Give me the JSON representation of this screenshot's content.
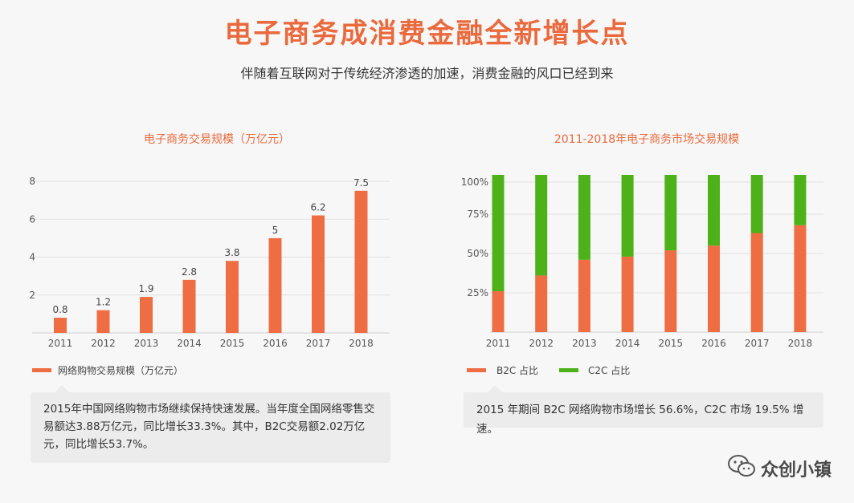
{
  "header": {
    "title": "电子商务成消费金融全新增长点",
    "subtitle": "伴随着互联网对于传统经济渗透的加速，消费金融的风口已经到来"
  },
  "colors": {
    "orange": "#ee6d42",
    "green": "#4db11a",
    "title": "#ea6a3d",
    "grid": "#e2e2e2"
  },
  "chart_data": [
    {
      "type": "bar",
      "title": "电子商务交易规模（万亿元）",
      "categories": [
        "2011",
        "2012",
        "2013",
        "2014",
        "2015",
        "2016",
        "2017",
        "2018"
      ],
      "series": [
        {
          "name": "网络购物交易规模（万亿元）",
          "values": [
            0.8,
            1.2,
            1.9,
            2.8,
            3.8,
            5,
            6.2,
            7.5
          ]
        }
      ],
      "data_labels": [
        "0.8",
        "1.2",
        "1.9",
        "2.8",
        "3.8",
        "5",
        "6.2",
        "7.5"
      ],
      "yticks": [
        "2",
        "4",
        "6",
        "8"
      ],
      "ylim": [
        0,
        8
      ],
      "grid": true,
      "legend": "bottom-left"
    },
    {
      "type": "bar",
      "stacked": true,
      "title": "2011-2018年电子商务市场交易规模",
      "categories": [
        "2011",
        "2012",
        "2013",
        "2014",
        "2015",
        "2016",
        "2017",
        "2018"
      ],
      "series": [
        {
          "name": "B2C 占比",
          "values": [
            26,
            36,
            46,
            48,
            52,
            55,
            63,
            68
          ]
        },
        {
          "name": "C2C 占比",
          "values": [
            74,
            64,
            54,
            52,
            48,
            45,
            37,
            32
          ]
        }
      ],
      "yticks": [
        "25%",
        "50%",
        "75%",
        "100%"
      ],
      "ylim": [
        0,
        100
      ],
      "grid": true,
      "legend": "bottom-left"
    }
  ],
  "notes": {
    "left": "2015年中国网络购物市场继续保持快速发展。当年度全国网络零售交易额达3.88万亿元，同比增长33.3%。其中，B2C交易额2.02万亿元，同比增长53.7%。",
    "right": "2015 年期间 B2C 网络购物市场增长 56.6%，C2C 市场 19.5% 增速。"
  },
  "watermark": {
    "text": "众创小镇",
    "icon": "wechat-icon"
  }
}
